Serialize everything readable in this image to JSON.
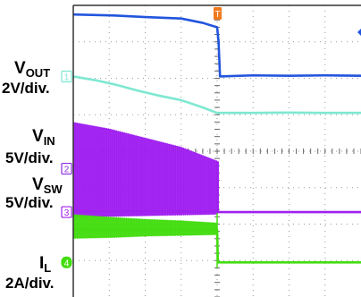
{
  "chart_data": {
    "type": "line",
    "title": "",
    "grid": true,
    "x_divisions": 8,
    "y_divisions": 8,
    "trigger_marker": "T",
    "channels": [
      {
        "id": "1",
        "name": "VOUT",
        "base": "V",
        "sub": "OUT",
        "scale": "2V/div.",
        "color": "#7ee8d2"
      },
      {
        "id": "2",
        "name": "VIN",
        "base": "V",
        "sub": "IN",
        "scale": "5V/div.",
        "color": "#8a2be2"
      },
      {
        "id": "3",
        "name": "VSW",
        "base": "V",
        "sub": "SW",
        "scale": "5V/div.",
        "color": "#a020f0"
      },
      {
        "id": "4",
        "name": "IL",
        "base": "I",
        "sub": "L",
        "scale": "2A/div.",
        "color": "#44dd11"
      }
    ],
    "series": [
      {
        "name": "VIN",
        "color": "#2255dd",
        "x": [
          0,
          1.2,
          2.0,
          3.0,
          3.6,
          4.0,
          4.04,
          4.08,
          5.0,
          6.0,
          7.0,
          8.0
        ],
        "y": [
          7.75,
          7.72,
          7.68,
          7.64,
          7.52,
          7.4,
          7.0,
          6.05,
          6.08,
          6.07,
          6.08,
          6.07
        ]
      },
      {
        "name": "VOUT",
        "color": "#7ee8d2",
        "x": [
          0,
          0.6,
          1.2,
          1.8,
          2.4,
          3.0,
          3.6,
          4.0,
          4.04,
          5.0,
          6.0,
          7.0,
          8.0
        ],
        "y": [
          6.05,
          5.95,
          5.82,
          5.66,
          5.52,
          5.4,
          5.2,
          5.05,
          5.05,
          5.05,
          5.06,
          5.05,
          5.05
        ]
      },
      {
        "name": "VSW",
        "color": "#a020f0",
        "x": [
          0,
          4.0,
          4.02,
          8.0
        ],
        "y": [
          2.35,
          2.35,
          2.33,
          2.33
        ]
      },
      {
        "name": "IL",
        "color": "#44dd11",
        "x": [
          0,
          4.0,
          4.02,
          8.0
        ],
        "y": [
          1.85,
          1.85,
          0.95,
          0.95
        ]
      }
    ],
    "bands": [
      {
        "name": "VSW",
        "color": "#a020f0",
        "x": [
          0,
          1.0,
          2.0,
          3.0,
          4.0
        ],
        "upper": [
          4.78,
          4.6,
          4.35,
          4.1,
          3.72
        ],
        "lower": [
          2.2,
          2.22,
          2.24,
          2.26,
          2.28
        ]
      },
      {
        "name": "IL",
        "color": "#44dd11",
        "x": [
          0,
          1.0,
          2.0,
          3.0,
          4.0
        ],
        "upper": [
          2.25,
          2.18,
          2.12,
          2.08,
          2.02
        ],
        "lower": [
          1.62,
          1.64,
          1.68,
          1.7,
          1.72
        ]
      }
    ],
    "ground_markers": [
      {
        "channel": "1",
        "level": 6.05
      },
      {
        "channel": "2",
        "level": 3.52
      },
      {
        "channel": "3",
        "level": 2.33
      },
      {
        "channel": "4",
        "level": 0.95
      }
    ]
  }
}
